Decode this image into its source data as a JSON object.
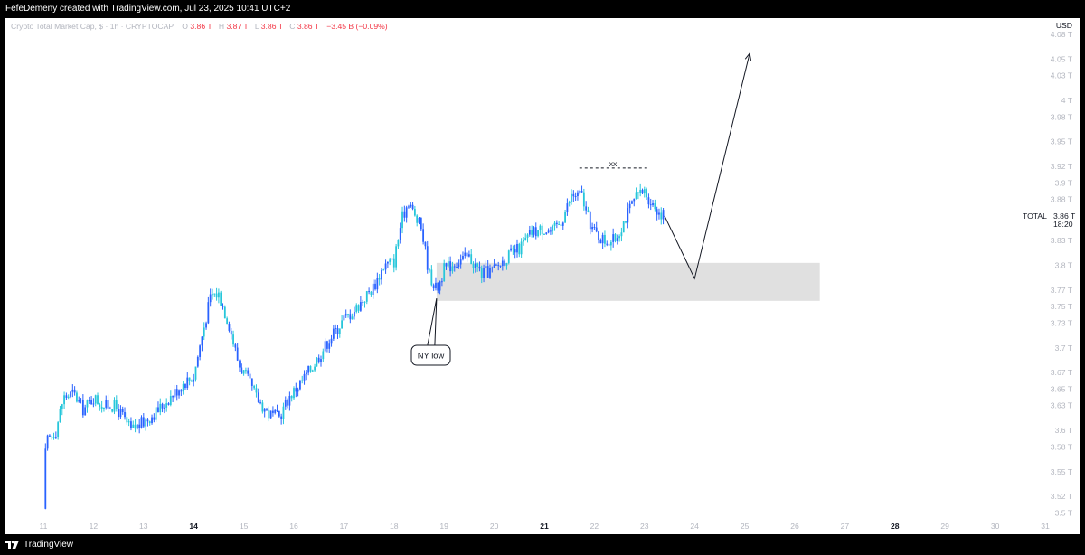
{
  "header": {
    "attribution": "FefeDemeny created with TradingView.com, Jul 23, 2025 10:41 UTC+2"
  },
  "legend": {
    "title": "Crypto Total Market Cap, $ · 1h · CRYPTOCAP",
    "o_label": "O",
    "o_value": "3.86 T",
    "h_label": "H",
    "h_value": "3.87 T",
    "l_label": "L",
    "l_value": "3.86 T",
    "c_label": "C",
    "c_value": "3.86 T",
    "change": "−3.45 B (−0.09%)"
  },
  "price_scale": {
    "currency": "USD",
    "symbol_label": "TOTAL",
    "last_price": "3.86 T",
    "countdown": "18:20"
  },
  "annotations": {
    "ny_low": "NY low",
    "double_top": "xx"
  },
  "footer": {
    "brand": "TradingView"
  },
  "colors": {
    "background": "#ffffff",
    "frame": "#000000",
    "candle_blue": "#2962ff",
    "candle_cyan": "#26c6da",
    "legend_red": "#f23645",
    "axis_text": "#b2b5be",
    "zone_fill": "#e0e0e0",
    "drawing": "#131722"
  },
  "chart_data": {
    "type": "candlestick",
    "title": "Crypto Total Market Cap, $ · 1h · CRYPTOCAP",
    "y_unit": "T USD",
    "ylim": [
      3.49,
      4.085
    ],
    "y_ticks": [
      {
        "v": 4.08,
        "label": "4.08 T"
      },
      {
        "v": 4.05,
        "label": "4.05 T"
      },
      {
        "v": 4.03,
        "label": "4.03 T"
      },
      {
        "v": 4.0,
        "label": "4 T"
      },
      {
        "v": 3.98,
        "label": "3.98 T"
      },
      {
        "v": 3.95,
        "label": "3.95 T"
      },
      {
        "v": 3.92,
        "label": "3.92 T"
      },
      {
        "v": 3.9,
        "label": "3.9 T"
      },
      {
        "v": 3.88,
        "label": "3.88 T"
      },
      {
        "v": 3.83,
        "label": "3.83 T"
      },
      {
        "v": 3.8,
        "label": "3.8 T"
      },
      {
        "v": 3.77,
        "label": "3.77 T"
      },
      {
        "v": 3.75,
        "label": "3.75 T"
      },
      {
        "v": 3.73,
        "label": "3.73 T"
      },
      {
        "v": 3.7,
        "label": "3.7 T"
      },
      {
        "v": 3.67,
        "label": "3.67 T"
      },
      {
        "v": 3.65,
        "label": "3.65 T"
      },
      {
        "v": 3.63,
        "label": "3.63 T"
      },
      {
        "v": 3.6,
        "label": "3.6 T"
      },
      {
        "v": 3.58,
        "label": "3.58 T"
      },
      {
        "v": 3.55,
        "label": "3.55 T"
      },
      {
        "v": 3.52,
        "label": "3.52 T"
      },
      {
        "v": 3.5,
        "label": "3.5 T"
      }
    ],
    "x_ticks": [
      {
        "d": 11,
        "label": "11",
        "bold": false
      },
      {
        "d": 12,
        "label": "12",
        "bold": false
      },
      {
        "d": 13,
        "label": "13",
        "bold": false
      },
      {
        "d": 14,
        "label": "14",
        "bold": true
      },
      {
        "d": 15,
        "label": "15",
        "bold": false
      },
      {
        "d": 16,
        "label": "16",
        "bold": false
      },
      {
        "d": 17,
        "label": "17",
        "bold": false
      },
      {
        "d": 18,
        "label": "18",
        "bold": false
      },
      {
        "d": 19,
        "label": "19",
        "bold": false
      },
      {
        "d": 20,
        "label": "20",
        "bold": false
      },
      {
        "d": 21,
        "label": "21",
        "bold": true
      },
      {
        "d": 22,
        "label": "22",
        "bold": false
      },
      {
        "d": 23,
        "label": "23",
        "bold": false
      },
      {
        "d": 24,
        "label": "24",
        "bold": false
      },
      {
        "d": 25,
        "label": "25",
        "bold": false
      },
      {
        "d": 26,
        "label": "26",
        "bold": false
      },
      {
        "d": 27,
        "label": "27",
        "bold": false
      },
      {
        "d": 28,
        "label": "28",
        "bold": true
      },
      {
        "d": 29,
        "label": "29",
        "bold": false
      },
      {
        "d": 30,
        "label": "30",
        "bold": false
      },
      {
        "d": 31,
        "label": "31",
        "bold": false
      }
    ],
    "price_path": [
      [
        11.0,
        3.505
      ],
      [
        11.05,
        3.585
      ],
      [
        11.25,
        3.6
      ],
      [
        11.4,
        3.64
      ],
      [
        11.6,
        3.645
      ],
      [
        11.8,
        3.625
      ],
      [
        12.0,
        3.64
      ],
      [
        12.2,
        3.63
      ],
      [
        12.4,
        3.63
      ],
      [
        12.55,
        3.62
      ],
      [
        12.75,
        3.6
      ],
      [
        13.0,
        3.61
      ],
      [
        13.3,
        3.625
      ],
      [
        13.6,
        3.645
      ],
      [
        13.85,
        3.66
      ],
      [
        14.0,
        3.665
      ],
      [
        14.15,
        3.71
      ],
      [
        14.35,
        3.765
      ],
      [
        14.5,
        3.765
      ],
      [
        14.7,
        3.73
      ],
      [
        14.9,
        3.68
      ],
      [
        15.05,
        3.665
      ],
      [
        15.25,
        3.64
      ],
      [
        15.5,
        3.62
      ],
      [
        15.7,
        3.615
      ],
      [
        15.9,
        3.64
      ],
      [
        16.1,
        3.655
      ],
      [
        16.4,
        3.68
      ],
      [
        16.7,
        3.71
      ],
      [
        17.0,
        3.735
      ],
      [
        17.2,
        3.745
      ],
      [
        17.4,
        3.76
      ],
      [
        17.6,
        3.775
      ],
      [
        17.8,
        3.8
      ],
      [
        18.0,
        3.805
      ],
      [
        18.15,
        3.855
      ],
      [
        18.3,
        3.88
      ],
      [
        18.4,
        3.86
      ],
      [
        18.55,
        3.845
      ],
      [
        18.7,
        3.79
      ],
      [
        18.85,
        3.77
      ],
      [
        19.0,
        3.795
      ],
      [
        19.25,
        3.805
      ],
      [
        19.5,
        3.81
      ],
      [
        19.75,
        3.79
      ],
      [
        20.0,
        3.795
      ],
      [
        20.25,
        3.81
      ],
      [
        20.5,
        3.82
      ],
      [
        20.75,
        3.84
      ],
      [
        21.0,
        3.845
      ],
      [
        21.15,
        3.84
      ],
      [
        21.35,
        3.855
      ],
      [
        21.55,
        3.885
      ],
      [
        21.75,
        3.885
      ],
      [
        21.85,
        3.86
      ],
      [
        22.0,
        3.84
      ],
      [
        22.2,
        3.83
      ],
      [
        22.4,
        3.83
      ],
      [
        22.6,
        3.855
      ],
      [
        22.8,
        3.88
      ],
      [
        23.0,
        3.89
      ],
      [
        23.15,
        3.875
      ],
      [
        23.3,
        3.865
      ],
      [
        23.4,
        3.86
      ]
    ],
    "drawings": {
      "demand_zone": {
        "x_start": 18.85,
        "x_end": 26.5,
        "y_low": 3.757,
        "y_high": 3.803
      },
      "double_top_line": {
        "x_start": 21.7,
        "x_end": 23.1,
        "y": 3.918
      },
      "projection": [
        [
          23.4,
          3.86
        ],
        [
          24.0,
          3.784
        ],
        [
          25.1,
          4.057
        ]
      ],
      "ny_low_point": {
        "x": 18.85,
        "y": 3.76
      }
    }
  }
}
